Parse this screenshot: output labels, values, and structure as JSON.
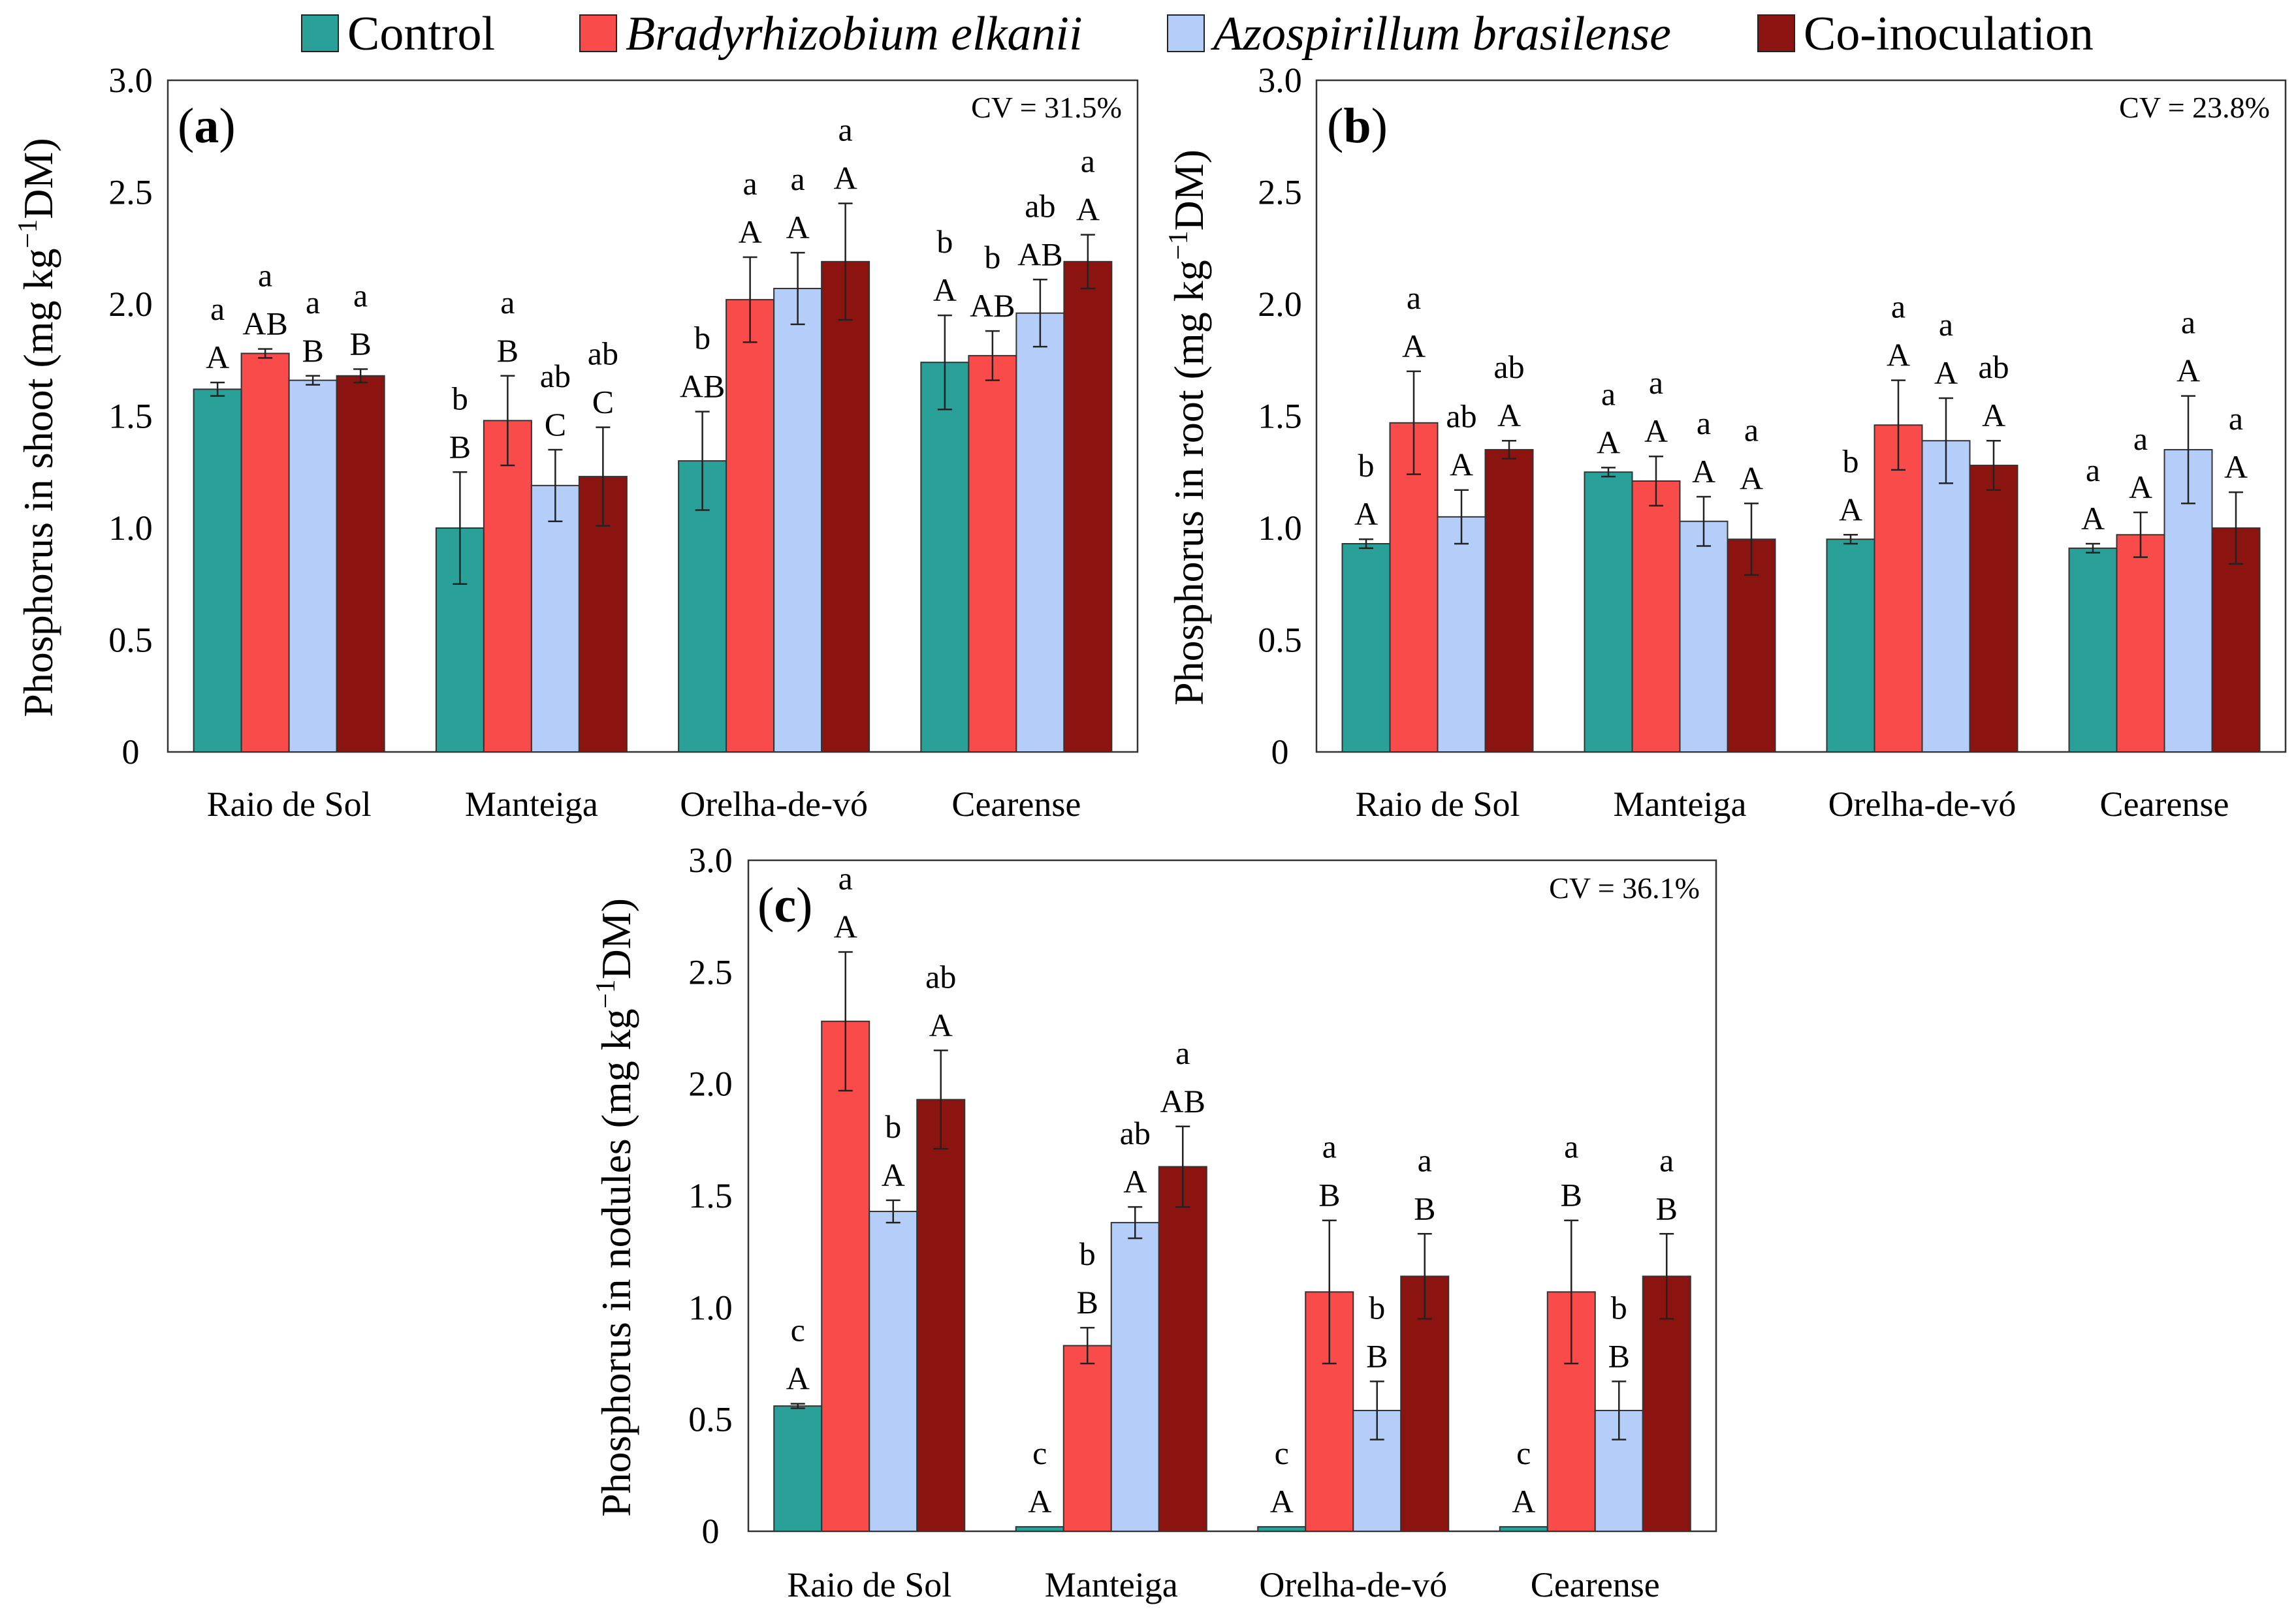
{
  "legend": {
    "items": [
      {
        "name": "Control",
        "color": "#2aa198",
        "italic": false
      },
      {
        "name": "Bradyrhizobium elkanii",
        "color": "#fa4b4b",
        "italic": true
      },
      {
        "name": "Azospirillum brasilense",
        "color": "#b5cdf9",
        "italic": true
      },
      {
        "name": "Co-inoculation",
        "color": "#8b1410",
        "italic": false
      }
    ]
  },
  "chart_data": [
    {
      "type": "bar",
      "panel_label": "a",
      "cv_text": "CV = 31.5%",
      "ylabel_pre": "Phosphorus in shoot (mg kg",
      "ylabel_sup": "−1",
      "ylabel_post": "DM)",
      "ylim": [
        0,
        3.0
      ],
      "yticks": [
        "0",
        "0.5",
        "1.0",
        "1.5",
        "2.0",
        "2.5",
        "3.0"
      ],
      "categories": [
        "Raio de Sol",
        "Manteiga",
        "Orelha-de-vó",
        "Cearense"
      ],
      "series": [
        {
          "name": "Control",
          "values": [
            1.62,
            1.0,
            1.3,
            1.74
          ],
          "errors": [
            0.03,
            0.25,
            0.22,
            0.21
          ],
          "lower": [
            "a",
            "b",
            "b",
            "b"
          ],
          "upper": [
            "A",
            "B",
            "AB",
            "A"
          ]
        },
        {
          "name": "Bradyrhizobium elkanii",
          "values": [
            1.78,
            1.48,
            2.02,
            1.77
          ],
          "errors": [
            0.02,
            0.2,
            0.19,
            0.11
          ],
          "lower": [
            "a",
            "a",
            "a",
            "b"
          ],
          "upper": [
            "AB",
            "B",
            "A",
            "AB"
          ]
        },
        {
          "name": "Azospirillum brasilense",
          "values": [
            1.66,
            1.19,
            2.07,
            1.96
          ],
          "errors": [
            0.02,
            0.16,
            0.16,
            0.15
          ],
          "lower": [
            "a",
            "ab",
            "a",
            "ab"
          ],
          "upper": [
            "B",
            "C",
            "A",
            "AB"
          ]
        },
        {
          "name": "Co-inoculation",
          "values": [
            1.68,
            1.23,
            2.19,
            2.19
          ],
          "errors": [
            0.03,
            0.22,
            0.26,
            0.12
          ],
          "lower": [
            "a",
            "ab",
            "a",
            "a"
          ],
          "upper": [
            "B",
            "C",
            "A",
            "A"
          ]
        }
      ]
    },
    {
      "type": "bar",
      "panel_label": "b",
      "cv_text": "CV = 23.8%",
      "ylabel_pre": "Phosphorus in root (mg kg",
      "ylabel_sup": "−1",
      "ylabel_post": "DM)",
      "ylim": [
        0,
        3.0
      ],
      "yticks": [
        "0",
        "0.5",
        "1.0",
        "1.5",
        "2.0",
        "2.5",
        "3.0"
      ],
      "categories": [
        "Raio de Sol",
        "Manteiga",
        "Orelha-de-vó",
        "Cearense"
      ],
      "series": [
        {
          "name": "Control",
          "values": [
            0.93,
            1.25,
            0.95,
            0.91
          ],
          "errors": [
            0.02,
            0.02,
            0.02,
            0.02
          ],
          "lower": [
            "b",
            "a",
            "b",
            "a"
          ],
          "upper": [
            "A",
            "A",
            "A",
            "A"
          ]
        },
        {
          "name": "Bradyrhizobium elkanii",
          "values": [
            1.47,
            1.21,
            1.46,
            0.97
          ],
          "errors": [
            0.23,
            0.11,
            0.2,
            0.1
          ],
          "lower": [
            "a",
            "a",
            "a",
            "a"
          ],
          "upper": [
            "A",
            "A",
            "A",
            "A"
          ]
        },
        {
          "name": "Azospirillum brasilense",
          "values": [
            1.05,
            1.03,
            1.39,
            1.35
          ],
          "errors": [
            0.12,
            0.11,
            0.19,
            0.24
          ],
          "lower": [
            "ab",
            "a",
            "a",
            "a"
          ],
          "upper": [
            "A",
            "A",
            "A",
            "A"
          ]
        },
        {
          "name": "Co-inoculation",
          "values": [
            1.35,
            0.95,
            1.28,
            1.0
          ],
          "errors": [
            0.04,
            0.16,
            0.11,
            0.16
          ],
          "lower": [
            "ab",
            "a",
            "ab",
            "a"
          ],
          "upper": [
            "A",
            "A",
            "A",
            "A"
          ]
        }
      ]
    },
    {
      "type": "bar",
      "panel_label": "c",
      "cv_text": "CV = 36.1%",
      "ylabel_pre": "Phosphorus in nodules (mg kg",
      "ylabel_sup": "−1",
      "ylabel_post": "DM)",
      "ylim": [
        0,
        3.0
      ],
      "yticks": [
        "0",
        "0.5",
        "1.0",
        "1.5",
        "2.0",
        "2.5",
        "3.0"
      ],
      "categories": [
        "Raio de Sol",
        "Manteiga",
        "Orelha-de-vó",
        "Cearense"
      ],
      "series": [
        {
          "name": "Control",
          "values": [
            0.56,
            0.02,
            0.02,
            0.02
          ],
          "errors": [
            0.01,
            0,
            0,
            0
          ],
          "lower": [
            "c",
            "c",
            "c",
            "c"
          ],
          "upper": [
            "A",
            "A",
            "A",
            "A"
          ]
        },
        {
          "name": "Bradyrhizobium elkanii",
          "values": [
            2.28,
            0.83,
            1.07,
            1.07
          ],
          "errors": [
            0.31,
            0.08,
            0.32,
            0.32
          ],
          "lower": [
            "a",
            "b",
            "a",
            "a"
          ],
          "upper": [
            "A",
            "B",
            "B",
            "B"
          ]
        },
        {
          "name": "Azospirillum brasilense",
          "values": [
            1.43,
            1.38,
            0.54,
            0.54
          ],
          "errors": [
            0.05,
            0.07,
            0.13,
            0.13
          ],
          "lower": [
            "b",
            "ab",
            "b",
            "b"
          ],
          "upper": [
            "A",
            "A",
            "B",
            "B"
          ]
        },
        {
          "name": "Co-inoculation",
          "values": [
            1.93,
            1.63,
            1.14,
            1.14
          ],
          "errors": [
            0.22,
            0.18,
            0.19,
            0.19
          ],
          "lower": [
            "ab",
            "a",
            "a",
            "a"
          ],
          "upper": [
            "A",
            "AB",
            "B",
            "B"
          ]
        }
      ]
    }
  ]
}
